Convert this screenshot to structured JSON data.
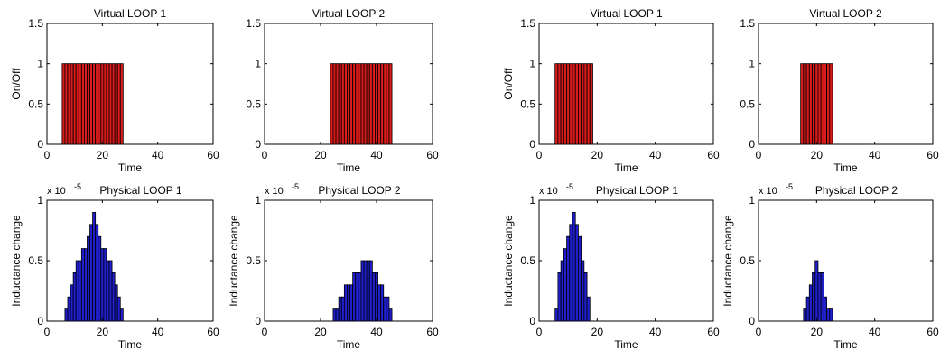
{
  "chart_data": [
    {
      "type": "bar",
      "title": "Virtual LOOP 1",
      "xlabel": "Time",
      "ylabel": "On/Off",
      "xlim": [
        0,
        60
      ],
      "ylim": [
        0,
        1.5
      ],
      "xticks": [
        "0",
        "20",
        "40",
        "60"
      ],
      "yticks": [
        "0",
        "0.5",
        "1",
        "1.5"
      ],
      "exponent": "",
      "bar_color": "#d81b1b",
      "x": [
        6,
        7,
        8,
        9,
        10,
        11,
        12,
        13,
        14,
        15,
        16,
        17,
        18,
        19,
        20,
        21,
        22,
        23,
        24,
        25,
        26,
        27
      ],
      "values": [
        1,
        1,
        1,
        1,
        1,
        1,
        1,
        1,
        1,
        1,
        1,
        1,
        1,
        1,
        1,
        1,
        1,
        1,
        1,
        1,
        1,
        1
      ]
    },
    {
      "type": "bar",
      "title": "Virtual LOOP 2",
      "xlabel": "Time",
      "ylabel": "",
      "xlim": [
        0,
        60
      ],
      "ylim": [
        0,
        1.5
      ],
      "xticks": [
        "0",
        "20",
        "40",
        "60"
      ],
      "yticks": [
        "0",
        "0.5",
        "1",
        "1.5"
      ],
      "exponent": "",
      "bar_color": "#d81b1b",
      "x": [
        24,
        25,
        26,
        27,
        28,
        29,
        30,
        31,
        32,
        33,
        34,
        35,
        36,
        37,
        38,
        39,
        40,
        41,
        42,
        43,
        44,
        45
      ],
      "values": [
        1,
        1,
        1,
        1,
        1,
        1,
        1,
        1,
        1,
        1,
        1,
        1,
        1,
        1,
        1,
        1,
        1,
        1,
        1,
        1,
        1,
        1
      ]
    },
    {
      "type": "bar",
      "title": "Virtual LOOP 1",
      "xlabel": "Time",
      "ylabel": "On/Off",
      "xlim": [
        0,
        60
      ],
      "ylim": [
        0,
        1.5
      ],
      "xticks": [
        "0",
        "20",
        "40",
        "60"
      ],
      "yticks": [
        "0",
        "0.5",
        "1",
        "1.5"
      ],
      "exponent": "",
      "bar_color": "#d81b1b",
      "x": [
        6,
        7,
        8,
        9,
        10,
        11,
        12,
        13,
        14,
        15,
        16,
        17,
        18
      ],
      "values": [
        1,
        1,
        1,
        1,
        1,
        1,
        1,
        1,
        1,
        1,
        1,
        1,
        1
      ]
    },
    {
      "type": "bar",
      "title": "Virtual LOOP 2",
      "xlabel": "Time",
      "ylabel": "",
      "xlim": [
        0,
        60
      ],
      "ylim": [
        0,
        1.5
      ],
      "xticks": [
        "0",
        "20",
        "40",
        "60"
      ],
      "yticks": [
        "0",
        "0.5",
        "1",
        "1.5"
      ],
      "exponent": "",
      "bar_color": "#d81b1b",
      "x": [
        15,
        16,
        17,
        18,
        19,
        20,
        21,
        22,
        23,
        24,
        25
      ],
      "values": [
        1,
        1,
        1,
        1,
        1,
        1,
        1,
        1,
        1,
        1,
        1
      ]
    },
    {
      "type": "bar",
      "title": "Physical LOOP 1",
      "xlabel": "Time",
      "ylabel": "Inductance change",
      "xlim": [
        0,
        60
      ],
      "ylim": [
        0,
        1
      ],
      "xticks": [
        "0",
        "20",
        "40",
        "60"
      ],
      "yticks": [
        "0",
        "0.5",
        "1"
      ],
      "exponent": "x 10",
      "exponent_power": "-5",
      "bar_color": "#1f1fcc",
      "x": [
        7,
        8,
        9,
        10,
        11,
        12,
        13,
        14,
        15,
        16,
        17,
        18,
        19,
        20,
        21,
        22,
        23,
        24,
        25,
        26,
        27
      ],
      "values": [
        0.1,
        0.2,
        0.3,
        0.4,
        0.5,
        0.5,
        0.6,
        0.6,
        0.7,
        0.8,
        0.9,
        0.8,
        0.7,
        0.6,
        0.6,
        0.5,
        0.5,
        0.4,
        0.3,
        0.2,
        0.1
      ]
    },
    {
      "type": "bar",
      "title": "Physical LOOP 2",
      "xlabel": "Time",
      "ylabel": "Inductance change",
      "xlim": [
        0,
        60
      ],
      "ylim": [
        0,
        1
      ],
      "xticks": [
        "0",
        "20",
        "40",
        "60"
      ],
      "yticks": [
        "0",
        "0.5",
        "1"
      ],
      "exponent": "x 10",
      "exponent_power": "-5",
      "bar_color": "#1f1fcc",
      "x": [
        25,
        26,
        27,
        28,
        29,
        30,
        31,
        32,
        33,
        34,
        35,
        36,
        37,
        38,
        39,
        40,
        41,
        42,
        43,
        44,
        45
      ],
      "values": [
        0.1,
        0.1,
        0.2,
        0.2,
        0.3,
        0.3,
        0.3,
        0.4,
        0.4,
        0.4,
        0.5,
        0.5,
        0.5,
        0.5,
        0.4,
        0.4,
        0.3,
        0.3,
        0.2,
        0.2,
        0.1
      ]
    },
    {
      "type": "bar",
      "title": "Physical LOOP 1",
      "xlabel": "Time",
      "ylabel": "Inductance change",
      "xlim": [
        0,
        60
      ],
      "ylim": [
        0,
        1
      ],
      "xticks": [
        "0",
        "20",
        "40",
        "60"
      ],
      "yticks": [
        "0",
        "0.5",
        "1"
      ],
      "exponent": "x 10",
      "exponent_power": "-5",
      "bar_color": "#1f1fcc",
      "x": [
        6,
        7,
        8,
        9,
        10,
        11,
        12,
        13,
        14,
        15,
        16,
        17
      ],
      "values": [
        0.1,
        0.4,
        0.5,
        0.6,
        0.7,
        0.8,
        0.9,
        0.8,
        0.7,
        0.5,
        0.4,
        0.2
      ]
    },
    {
      "type": "bar",
      "title": "Physical LOOP 2",
      "xlabel": "Time",
      "ylabel": "Inductance change",
      "xlim": [
        0,
        60
      ],
      "ylim": [
        0,
        1
      ],
      "xticks": [
        "0",
        "20",
        "40",
        "60"
      ],
      "yticks": [
        "0",
        "0.5",
        "1"
      ],
      "exponent": "x 10",
      "exponent_power": "-5",
      "bar_color": "#1f1fcc",
      "x": [
        16,
        17,
        18,
        19,
        20,
        21,
        22,
        23,
        24,
        25
      ],
      "values": [
        0.1,
        0.2,
        0.3,
        0.4,
        0.5,
        0.4,
        0.4,
        0.2,
        0.1,
        0.1
      ]
    }
  ]
}
